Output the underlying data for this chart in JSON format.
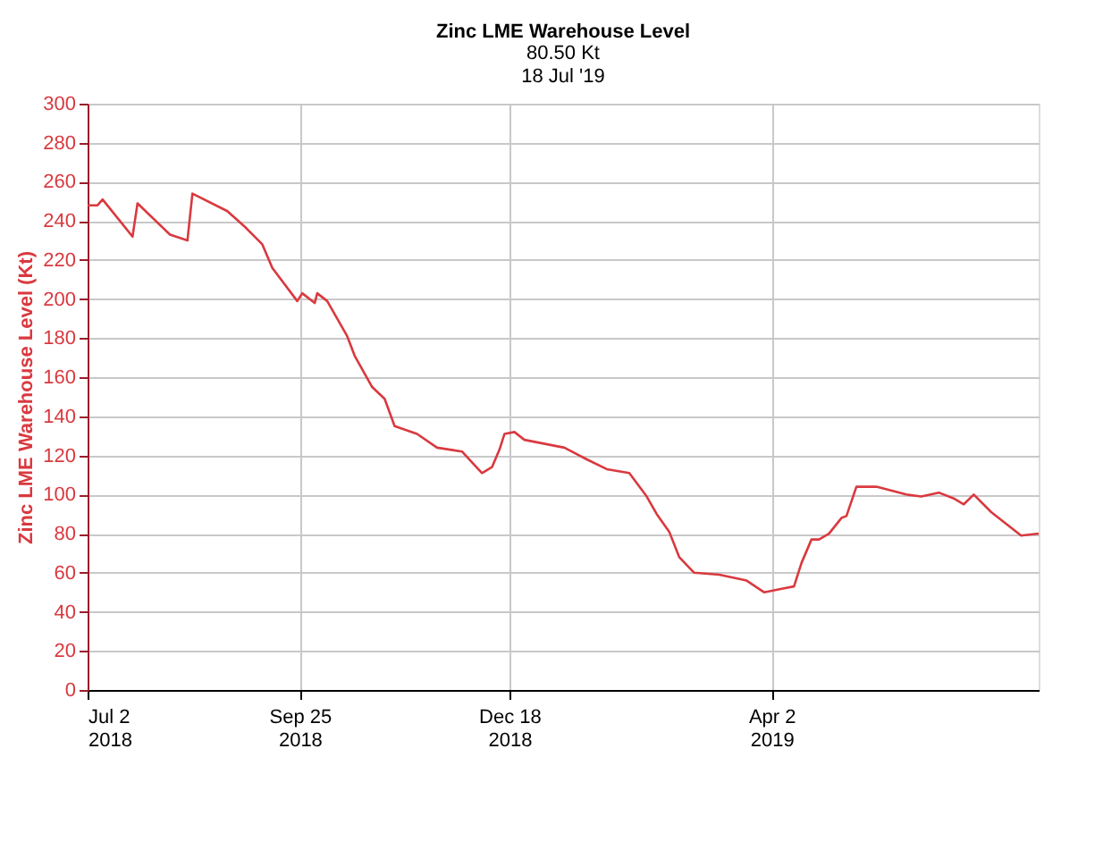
{
  "chart_data": {
    "type": "line",
    "title": "Zinc LME Warehouse Level",
    "subtitle": "80.50 Kt\n18 Jul '19",
    "ylabel": "Zinc LME Warehouse Level (Kt)",
    "x": [
      "2018-07-02",
      "2018-07-06",
      "2018-07-08",
      "2018-07-20",
      "2018-07-22",
      "2018-08-04",
      "2018-08-11",
      "2018-08-13",
      "2018-08-27",
      "2018-09-03",
      "2018-09-10",
      "2018-09-14",
      "2018-09-24",
      "2018-09-26",
      "2018-10-01",
      "2018-10-02",
      "2018-10-06",
      "2018-10-14",
      "2018-10-17",
      "2018-10-24",
      "2018-10-29",
      "2018-11-02",
      "2018-11-11",
      "2018-11-19",
      "2018-11-29",
      "2018-12-07",
      "2018-12-11",
      "2018-12-14",
      "2018-12-16",
      "2018-12-20",
      "2018-12-24",
      "2019-01-09",
      "2019-01-18",
      "2019-01-26",
      "2019-02-04",
      "2019-02-11",
      "2019-02-15",
      "2019-02-20",
      "2019-02-24",
      "2019-03-02",
      "2019-03-12",
      "2019-03-23",
      "2019-03-30",
      "2019-04-07",
      "2019-04-11",
      "2019-04-14",
      "2019-04-18",
      "2019-04-21",
      "2019-04-25",
      "2019-04-30",
      "2019-05-02",
      "2019-05-06",
      "2019-05-14",
      "2019-05-26",
      "2019-06-01",
      "2019-06-08",
      "2019-06-14",
      "2019-06-18",
      "2019-06-22",
      "2019-06-29",
      "2019-07-11",
      "2019-07-18"
    ],
    "series": [
      {
        "color": "#d9393f",
        "values": [
          248,
          248,
          251,
          232,
          249,
          233,
          230,
          254,
          245,
          237,
          228,
          216,
          199,
          203,
          198,
          203,
          199,
          181,
          171,
          155,
          149,
          135,
          131,
          124,
          122,
          111,
          114,
          123,
          131,
          132,
          128,
          124,
          118,
          113,
          111,
          99,
          90,
          81,
          68,
          60,
          59,
          56,
          50,
          52,
          53,
          65,
          77,
          77,
          80,
          88,
          89,
          104,
          104,
          100,
          99,
          101,
          98,
          95,
          100,
          91,
          79,
          80
        ]
      }
    ],
    "xlim": [
      "2018-07-02",
      "2019-07-18"
    ],
    "xticks": [
      {
        "value": "2018-07-02",
        "label": "Jul 2\n2018"
      },
      {
        "value": "2018-09-25",
        "label": "Sep 25\n2018"
      },
      {
        "value": "2018-12-18",
        "label": "Dec 18\n2018"
      },
      {
        "value": "2019-04-02",
        "label": "Apr 2\n2019"
      }
    ],
    "ylim": [
      0,
      300
    ],
    "yticks": [
      0,
      20,
      40,
      60,
      80,
      100,
      120,
      140,
      160,
      180,
      200,
      220,
      240,
      260,
      280,
      300
    ],
    "grid": true,
    "marker": "none",
    "line_style": "solid"
  }
}
